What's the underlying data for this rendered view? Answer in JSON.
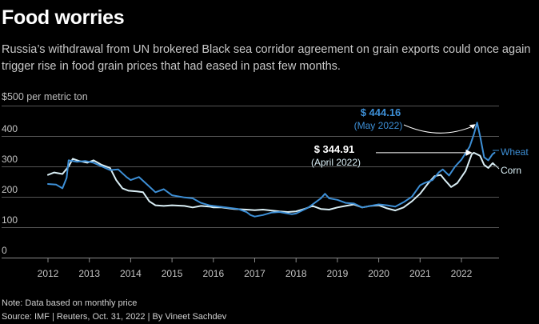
{
  "header": {
    "title": "Food worries",
    "subtitle": "Russia’s withdrawal from UN brokered Black sea corridor agreement on grain exports could once again trigger rise in food grain prices that had eased in past few months.",
    "unit_label": "$500 per metric ton"
  },
  "footer": {
    "note": "Note: Data based on monthly price",
    "source": "Source: IMF | Reuters, Oct. 31, 2022 | By Vineet Sachdev"
  },
  "colors": {
    "wheat": "#3d8fd6",
    "corn": "#d9eef5",
    "background": "#000000",
    "grid": "#555555"
  },
  "chart_data": {
    "type": "line",
    "xlabel": "",
    "ylabel": "$500 per metric ton",
    "xlim": [
      2011.6,
      2022.9
    ],
    "ylim": [
      0,
      500
    ],
    "x_ticks": [
      "2012",
      "2013",
      "2014",
      "2015",
      "2016",
      "2017",
      "2018",
      "2019",
      "2020",
      "2021",
      "2022"
    ],
    "y_ticks": [
      "0",
      "100",
      "200",
      "300",
      "400"
    ],
    "grid": true,
    "series": [
      {
        "name": "Wheat",
        "points": [
          [
            2012.0,
            242
          ],
          [
            2012.2,
            240
          ],
          [
            2012.35,
            228
          ],
          [
            2012.45,
            262
          ],
          [
            2012.5,
            320
          ],
          [
            2012.7,
            315
          ],
          [
            2012.9,
            318
          ],
          [
            2013.1,
            312
          ],
          [
            2013.3,
            300
          ],
          [
            2013.5,
            288
          ],
          [
            2013.7,
            290
          ],
          [
            2013.9,
            265
          ],
          [
            2014.0,
            255
          ],
          [
            2014.2,
            265
          ],
          [
            2014.4,
            240
          ],
          [
            2014.6,
            215
          ],
          [
            2014.8,
            225
          ],
          [
            2015.0,
            205
          ],
          [
            2015.3,
            198
          ],
          [
            2015.5,
            195
          ],
          [
            2015.7,
            180
          ],
          [
            2015.9,
            172
          ],
          [
            2016.0,
            170
          ],
          [
            2016.3,
            165
          ],
          [
            2016.6,
            160
          ],
          [
            2016.8,
            150
          ],
          [
            2016.9,
            140
          ],
          [
            2017.0,
            135
          ],
          [
            2017.2,
            140
          ],
          [
            2017.4,
            148
          ],
          [
            2017.6,
            150
          ],
          [
            2017.8,
            145
          ],
          [
            2017.9,
            143
          ],
          [
            2018.0,
            145
          ],
          [
            2018.3,
            165
          ],
          [
            2018.5,
            185
          ],
          [
            2018.6,
            195
          ],
          [
            2018.7,
            210
          ],
          [
            2018.8,
            195
          ],
          [
            2019.0,
            190
          ],
          [
            2019.2,
            180
          ],
          [
            2019.4,
            178
          ],
          [
            2019.6,
            165
          ],
          [
            2019.8,
            170
          ],
          [
            2020.0,
            175
          ],
          [
            2020.2,
            172
          ],
          [
            2020.4,
            168
          ],
          [
            2020.6,
            182
          ],
          [
            2020.8,
            200
          ],
          [
            2021.0,
            238
          ],
          [
            2021.1,
            245
          ],
          [
            2021.3,
            255
          ],
          [
            2021.45,
            280
          ],
          [
            2021.55,
            290
          ],
          [
            2021.7,
            270
          ],
          [
            2021.85,
            300
          ],
          [
            2022.0,
            322
          ],
          [
            2022.2,
            365
          ],
          [
            2022.3,
            405
          ],
          [
            2022.38,
            444.16
          ],
          [
            2022.45,
            400
          ],
          [
            2022.55,
            330
          ],
          [
            2022.65,
            320
          ],
          [
            2022.75,
            340
          ],
          [
            2022.8,
            345
          ]
        ]
      },
      {
        "name": "Corn",
        "points": [
          [
            2012.0,
            272
          ],
          [
            2012.15,
            280
          ],
          [
            2012.35,
            275
          ],
          [
            2012.5,
            300
          ],
          [
            2012.6,
            325
          ],
          [
            2012.75,
            318
          ],
          [
            2012.95,
            312
          ],
          [
            2013.1,
            320
          ],
          [
            2013.3,
            305
          ],
          [
            2013.5,
            295
          ],
          [
            2013.65,
            255
          ],
          [
            2013.8,
            228
          ],
          [
            2013.95,
            220
          ],
          [
            2014.15,
            218
          ],
          [
            2014.3,
            215
          ],
          [
            2014.45,
            185
          ],
          [
            2014.6,
            172
          ],
          [
            2014.8,
            170
          ],
          [
            2015.0,
            172
          ],
          [
            2015.3,
            170
          ],
          [
            2015.5,
            165
          ],
          [
            2015.7,
            170
          ],
          [
            2015.9,
            168
          ],
          [
            2016.0,
            165
          ],
          [
            2016.2,
            165
          ],
          [
            2016.5,
            160
          ],
          [
            2016.8,
            158
          ],
          [
            2017.0,
            156
          ],
          [
            2017.2,
            158
          ],
          [
            2017.4,
            155
          ],
          [
            2017.6,
            152
          ],
          [
            2017.8,
            150
          ],
          [
            2018.0,
            152
          ],
          [
            2018.2,
            160
          ],
          [
            2018.4,
            170
          ],
          [
            2018.6,
            160
          ],
          [
            2018.8,
            158
          ],
          [
            2019.0,
            165
          ],
          [
            2019.2,
            170
          ],
          [
            2019.4,
            175
          ],
          [
            2019.6,
            165
          ],
          [
            2019.8,
            170
          ],
          [
            2020.0,
            172
          ],
          [
            2020.2,
            162
          ],
          [
            2020.4,
            155
          ],
          [
            2020.6,
            165
          ],
          [
            2020.8,
            185
          ],
          [
            2021.0,
            210
          ],
          [
            2021.2,
            245
          ],
          [
            2021.35,
            268
          ],
          [
            2021.5,
            272
          ],
          [
            2021.6,
            255
          ],
          [
            2021.75,
            232
          ],
          [
            2021.9,
            245
          ],
          [
            2022.1,
            285
          ],
          [
            2022.25,
            340
          ],
          [
            2022.3,
            344.91
          ],
          [
            2022.45,
            335
          ],
          [
            2022.55,
            305
          ],
          [
            2022.65,
            295
          ],
          [
            2022.75,
            310
          ],
          [
            2022.8,
            305
          ]
        ]
      }
    ],
    "annotations": [
      {
        "series": "Wheat",
        "value": "$ 444.16",
        "date": "(May 2022)",
        "x": 2022.38,
        "y": 444.16
      },
      {
        "series": "Corn",
        "value": "$ 344.91",
        "date": "(April 2022)",
        "x": 2022.3,
        "y": 344.91
      }
    ],
    "series_labels": [
      "Wheat",
      "Corn"
    ]
  }
}
